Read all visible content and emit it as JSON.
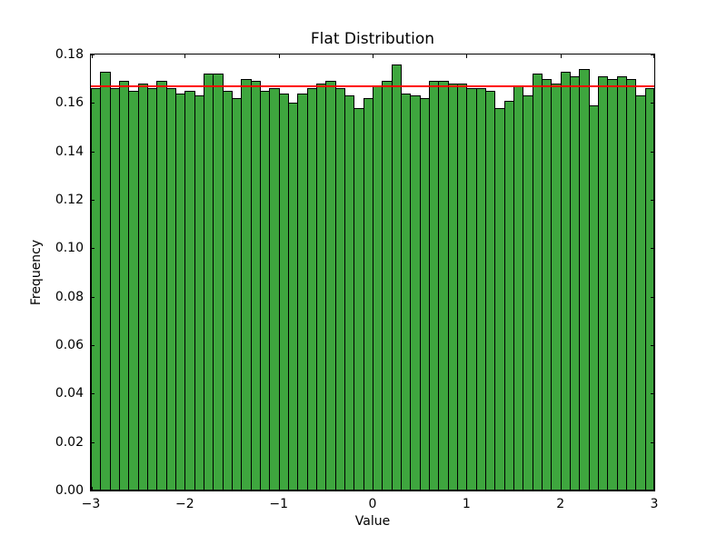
{
  "chart_data": {
    "type": "bar",
    "subtype": "histogram",
    "title": "Flat Distribution",
    "xlabel": "Value",
    "ylabel": "Frequency",
    "xlim": [
      -3,
      3
    ],
    "ylim": [
      0,
      0.18
    ],
    "grid": false,
    "legend": "none",
    "x_ticks": [
      -3,
      -2,
      -1,
      0,
      1,
      2,
      3
    ],
    "x_tick_labels": [
      "−3",
      "−2",
      "−1",
      "0",
      "1",
      "2",
      "3"
    ],
    "y_ticks": [
      0.0,
      0.02,
      0.04,
      0.06,
      0.08,
      0.1,
      0.12,
      0.14,
      0.16,
      0.18
    ],
    "y_tick_labels": [
      "0.00",
      "0.02",
      "0.04",
      "0.06",
      "0.08",
      "0.10",
      "0.12",
      "0.14",
      "0.16",
      "0.18"
    ],
    "bins": {
      "start": -3.0,
      "end": 3.0,
      "count": 60,
      "width": 0.1
    },
    "frequencies": [
      0.166,
      0.173,
      0.166,
      0.169,
      0.165,
      0.168,
      0.166,
      0.169,
      0.166,
      0.164,
      0.165,
      0.163,
      0.172,
      0.172,
      0.165,
      0.162,
      0.17,
      0.169,
      0.165,
      0.166,
      0.164,
      0.16,
      0.164,
      0.166,
      0.168,
      0.169,
      0.166,
      0.163,
      0.158,
      0.162,
      0.167,
      0.169,
      0.176,
      0.164,
      0.163,
      0.162,
      0.169,
      0.169,
      0.168,
      0.168,
      0.166,
      0.166,
      0.165,
      0.158,
      0.161,
      0.167,
      0.163,
      0.172,
      0.17,
      0.168,
      0.173,
      0.171,
      0.174,
      0.159,
      0.171,
      0.17,
      0.171,
      0.17,
      0.163,
      0.166
    ],
    "bar_color": "#3ea63e",
    "bar_edge_color": "#000000",
    "reference_line": {
      "y": 0.1667,
      "color": "#ff0000"
    },
    "background_color": "#ffffff",
    "frame_color": "#000000"
  }
}
